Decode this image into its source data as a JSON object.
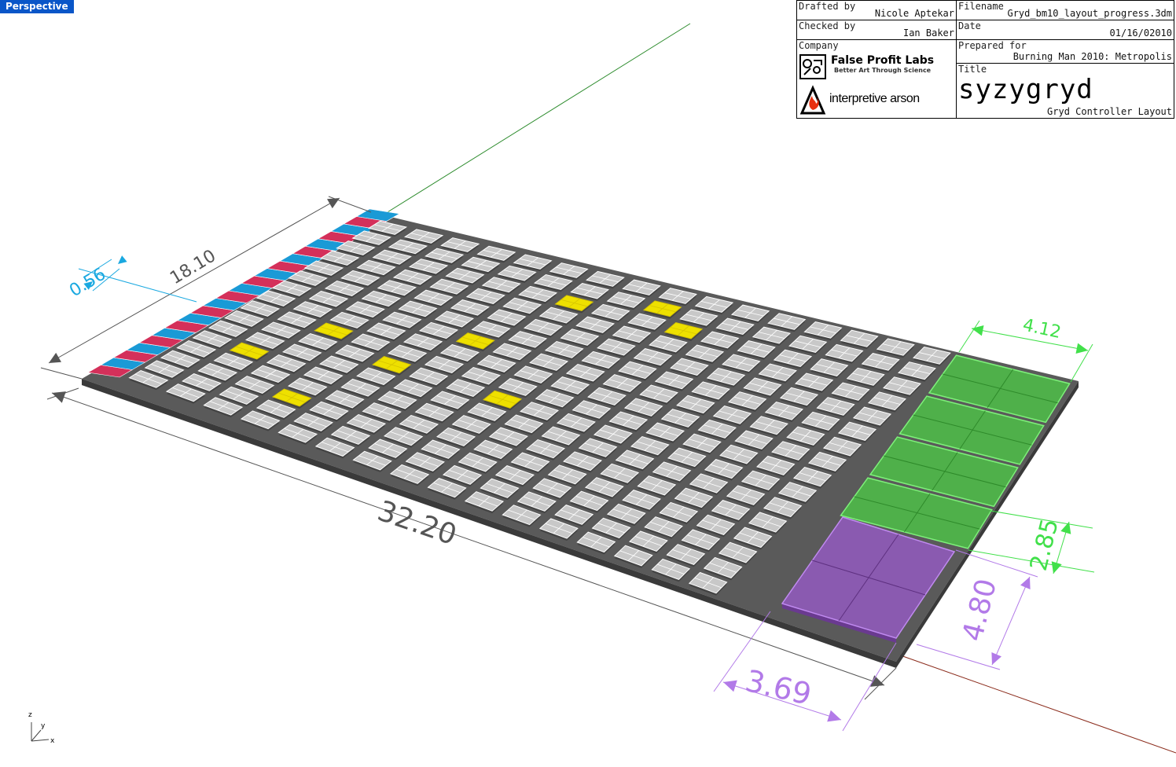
{
  "viewport": {
    "label": "Perspective"
  },
  "titleblock": {
    "drafted_by_label": "Drafted by",
    "drafted_by": "Nicole Aptekar",
    "checked_by_label": "Checked by",
    "checked_by": "Ian Baker",
    "company_label": "Company",
    "filename_label": "Filename",
    "filename": "Gryd_bm10_layout_progress.3dm",
    "date_label": "Date",
    "date": "01/16/02010",
    "prepared_for_label": "Prepared for",
    "prepared_for": "Burning Man 2010: Metropolis",
    "title_label": "Title",
    "title_logo": "syzygryd",
    "subtitle": "Gryd Controller Layout",
    "company1": "False Profit Labs",
    "company1_tagline": "Better Art Through Science",
    "company2": "interpretive arson"
  },
  "grid": {
    "rows": 16,
    "cols": 16,
    "highlighted": [
      [
        1,
        4
      ],
      [
        2,
        7
      ],
      [
        3,
        2
      ],
      [
        4,
        6
      ],
      [
        5,
        9
      ],
      [
        6,
        13
      ],
      [
        7,
        6
      ],
      [
        8,
        14
      ],
      [
        9,
        13
      ]
    ]
  },
  "dimensions": {
    "total_length": "32.20",
    "depth": "18.10",
    "strip_width": "0.56",
    "green_width": "4.12",
    "green_depth": "2.85",
    "purple_depth": "4.80",
    "purple_width": "3.69"
  },
  "colors": {
    "viewport_label": "#0a56c8",
    "base": "#5a5a5a",
    "tile": "#c8c8c8",
    "highlight": "#eee000",
    "red": "#d4305a",
    "blue": "#1a9ad6",
    "green": "#4fb04a",
    "purple": "#8a5ab0",
    "dim_cyan": "#19a8e0",
    "dim_green": "#41e04a",
    "dim_purple": "#b27ae8",
    "dim_grey": "#555555"
  },
  "triad": {
    "x": "x",
    "y": "y",
    "z": "z"
  }
}
